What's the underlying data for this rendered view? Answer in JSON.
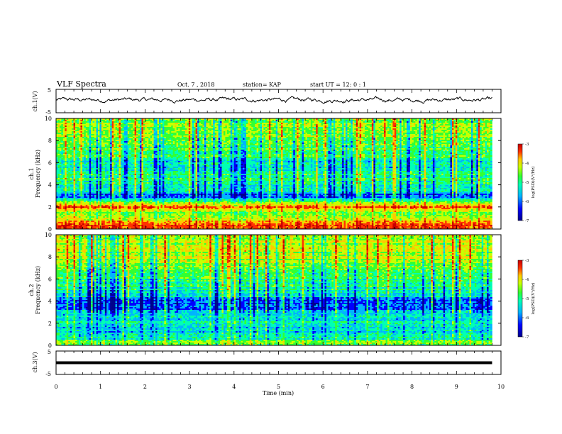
{
  "header": {
    "title": "VLF Spectra",
    "date": "Oct. 7 , 2018",
    "station": "station= KAP",
    "start": "start  UT  =   12: 0  : 1"
  },
  "chart_data": [
    {
      "type": "line",
      "ylabel": "ch.1(V)",
      "ylim": [
        -5,
        5
      ],
      "yticks": [
        "5",
        "-5"
      ],
      "xlim": [
        0,
        10
      ],
      "x_end": 9.8,
      "description_values": {
        "baseline_mean": 0.5,
        "fluctuation_range": [
          -2.2,
          2.8
        ]
      }
    },
    {
      "type": "heatmap",
      "channel_label": "ch.1",
      "ylabel": "Frequency  (kHz)",
      "ylim": [
        0,
        10
      ],
      "yticks": [
        "0",
        "2",
        "4",
        "6",
        "8",
        "10"
      ],
      "xlim": [
        0,
        10
      ],
      "x_end": 9.8,
      "colorbar": {
        "label": "log(PSD)(V²/Hz)",
        "ticks": [
          "-3",
          "-4",
          "-5",
          "-6",
          "-7"
        ],
        "range": [
          -7,
          -3
        ]
      },
      "band_levels": [
        {
          "f": 0.2,
          "level": 0.85
        },
        {
          "f": 0.6,
          "level": 0.8
        },
        {
          "f": 1.0,
          "level": 0.6
        },
        {
          "f": 1.5,
          "level": 0.55
        },
        {
          "f": 2.0,
          "level": 0.8
        },
        {
          "f": 2.5,
          "level": 0.5
        },
        {
          "f": 3.0,
          "level": 0.2
        },
        {
          "f": 3.5,
          "level": 0.35
        },
        {
          "f": 4.0,
          "level": 0.4
        },
        {
          "f": 4.5,
          "level": 0.45
        },
        {
          "f": 5.0,
          "level": 0.45
        },
        {
          "f": 5.5,
          "level": 0.35
        },
        {
          "f": 6.0,
          "level": 0.35
        },
        {
          "f": 6.5,
          "level": 0.45
        },
        {
          "f": 7.0,
          "level": 0.5
        },
        {
          "f": 8.0,
          "level": 0.55
        },
        {
          "f": 9.0,
          "level": 0.55
        },
        {
          "f": 10.0,
          "level": 0.55
        }
      ]
    },
    {
      "type": "heatmap",
      "channel_label": "ch.2",
      "ylabel": "Frequency  (kHz)",
      "ylim": [
        0,
        10
      ],
      "yticks": [
        "0",
        "2",
        "4",
        "6",
        "8",
        "10"
      ],
      "xlim": [
        0,
        10
      ],
      "x_end": 9.8,
      "colorbar": {
        "label": "log(PSD)(V²/Hz)",
        "ticks": [
          "-3",
          "-4",
          "-5",
          "-6",
          "-7"
        ],
        "range": [
          -7,
          -3
        ]
      },
      "band_levels": [
        {
          "f": 0.2,
          "level": 0.55
        },
        {
          "f": 0.6,
          "level": 0.4
        },
        {
          "f": 1.0,
          "level": 0.35
        },
        {
          "f": 1.5,
          "level": 0.35
        },
        {
          "f": 2.0,
          "level": 0.4
        },
        {
          "f": 2.5,
          "level": 0.35
        },
        {
          "f": 3.0,
          "level": 0.3
        },
        {
          "f": 3.5,
          "level": 0.2
        },
        {
          "f": 4.0,
          "level": 0.2
        },
        {
          "f": 4.5,
          "level": 0.35
        },
        {
          "f": 5.0,
          "level": 0.4
        },
        {
          "f": 5.5,
          "level": 0.4
        },
        {
          "f": 6.0,
          "level": 0.45
        },
        {
          "f": 6.5,
          "level": 0.5
        },
        {
          "f": 7.0,
          "level": 0.55
        },
        {
          "f": 8.0,
          "level": 0.6
        },
        {
          "f": 9.0,
          "level": 0.6
        },
        {
          "f": 10.0,
          "level": 0.6
        }
      ]
    },
    {
      "type": "line",
      "ylabel": "ch.3(V)",
      "ylim": [
        -5,
        5
      ],
      "yticks": [
        "5",
        "-5"
      ],
      "xlim": [
        0,
        10
      ],
      "x_end": 9.8,
      "constant_value": 0
    }
  ],
  "x_axis": {
    "label": "Time  (min)",
    "ticks": [
      "0",
      "1",
      "2",
      "3",
      "4",
      "5",
      "6",
      "7",
      "8",
      "9",
      "10"
    ]
  },
  "colors": {
    "axis": "#000000",
    "trace": "#000000",
    "colormap": [
      "#00008c",
      "#0000ff",
      "#00b4ff",
      "#00ffb4",
      "#32ff32",
      "#c8ff00",
      "#ffc800",
      "#ff3200",
      "#c80000"
    ]
  }
}
